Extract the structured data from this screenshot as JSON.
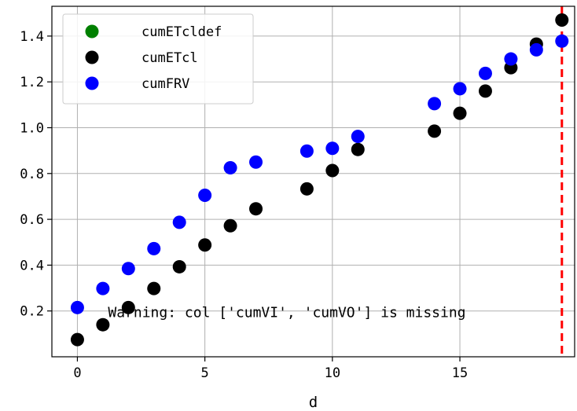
{
  "chart_data": {
    "type": "scatter",
    "xlabel": "d",
    "ylabel": "",
    "xlim": [
      -1,
      19.5
    ],
    "ylim": [
      0.0,
      1.53
    ],
    "x_ticks": [
      0,
      5,
      10,
      15
    ],
    "y_ticks": [
      0.2,
      0.4,
      0.6,
      0.8,
      1.0,
      1.2,
      1.4
    ],
    "x_tick_labels": [
      "0",
      "5",
      "10",
      "15"
    ],
    "y_tick_labels": [
      "0.2",
      "0.4",
      "0.6",
      "0.8",
      "1.0",
      "1.2",
      "1.4"
    ],
    "grid": true,
    "legend_position": "top-left",
    "series": [
      {
        "name": "cumETcldef",
        "color": "#008000",
        "points": []
      },
      {
        "name": "cumETcl",
        "color": "#000000",
        "points": [
          [
            0,
            0.075
          ],
          [
            1,
            0.14
          ],
          [
            2,
            0.215
          ],
          [
            3,
            0.298
          ],
          [
            4,
            0.393
          ],
          [
            5,
            0.488
          ],
          [
            6,
            0.572
          ],
          [
            7,
            0.646
          ],
          [
            9,
            0.733
          ],
          [
            10,
            0.813
          ],
          [
            11,
            0.905
          ],
          [
            14,
            0.985
          ],
          [
            15,
            1.063
          ],
          [
            16,
            1.16
          ],
          [
            17,
            1.262
          ],
          [
            18,
            1.365
          ],
          [
            19,
            1.47
          ]
        ]
      },
      {
        "name": "cumFRV",
        "color": "#0000ff",
        "points": [
          [
            0,
            0.215
          ],
          [
            1,
            0.298
          ],
          [
            2,
            0.385
          ],
          [
            3,
            0.472
          ],
          [
            4,
            0.587
          ],
          [
            5,
            0.705
          ],
          [
            6,
            0.825
          ],
          [
            7,
            0.85
          ],
          [
            9,
            0.898
          ],
          [
            10,
            0.91
          ],
          [
            11,
            0.962
          ],
          [
            14,
            1.105
          ],
          [
            15,
            1.17
          ],
          [
            16,
            1.237
          ],
          [
            17,
            1.3
          ],
          [
            18,
            1.34
          ],
          [
            19,
            1.378
          ]
        ]
      }
    ],
    "vline": {
      "x": 19,
      "color": "#ff0000",
      "style": "dashed"
    },
    "annotation": {
      "text": "Warning: col ['cumVI', 'cumVO'] is missing",
      "x": 1.2,
      "y": 0.2
    }
  }
}
